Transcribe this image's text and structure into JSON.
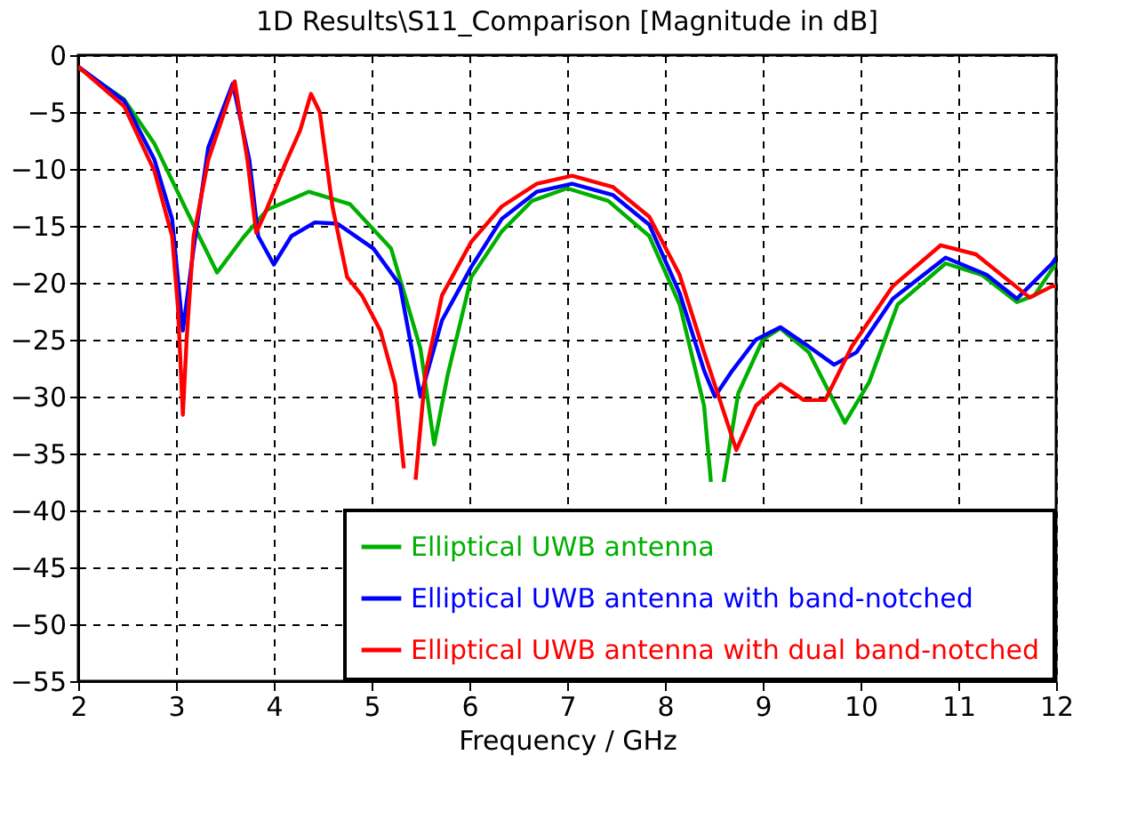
{
  "chart_data": {
    "type": "line",
    "title": "1D Results\\S11_Comparison [Magnitude in dB]",
    "xlabel": "Frequency / GHz",
    "xlim": [
      2,
      12
    ],
    "xticks": [
      2,
      3,
      4,
      5,
      6,
      7,
      8,
      9,
      10,
      11,
      12
    ],
    "ylim": [
      -55,
      0
    ],
    "yticks": [
      0,
      -5,
      -10,
      -15,
      -20,
      -25,
      -30,
      -35,
      -40,
      -45,
      -50,
      -55
    ],
    "grid": true,
    "legend": "bottom right",
    "series": [
      {
        "name": "Elliptical UWB antenna",
        "color": "#00b000",
        "x": [
          2,
          2.47,
          2.78,
          3.15,
          3.42,
          3.69,
          3.93,
          4.36,
          4.78,
          5.2,
          5.5,
          5.64,
          5.78,
          6.02,
          6.33,
          6.64,
          7.0,
          7.42,
          7.84,
          8.15,
          8.4,
          8.47,
          8.53,
          8.6,
          8.75,
          9.0,
          9.18,
          9.47,
          9.84,
          10.09,
          10.38,
          10.87,
          11.24,
          11.6,
          11.78,
          11.96,
          12
        ],
        "values": [
          -1.1,
          -3.9,
          -7.8,
          -14.4,
          -19.1,
          -16,
          -13.6,
          -12,
          -13.1,
          -17,
          -25.8,
          -34.2,
          -28,
          -19.5,
          -15.5,
          -12.8,
          -11.7,
          -12.8,
          -15.9,
          -21.9,
          -30.8,
          -37.5,
          null,
          -37.5,
          -29.7,
          -25,
          -24,
          -26.1,
          -32.3,
          -28.7,
          -21.9,
          -18.3,
          -19.3,
          -21.7,
          -21.1,
          -18.8,
          -18.3
        ]
      },
      {
        "name": "Elliptical UWB antenna with band-notched",
        "color": "#0000ff",
        "x": [
          2,
          2.47,
          2.78,
          2.96,
          3.07,
          3.18,
          3.33,
          3.58,
          3.75,
          3.84,
          4.0,
          4.18,
          4.42,
          4.65,
          5.02,
          5.29,
          5.5,
          5.72,
          6.02,
          6.33,
          6.69,
          7.05,
          7.47,
          7.84,
          8.15,
          8.4,
          8.51,
          8.69,
          8.93,
          9.18,
          9.47,
          9.73,
          9.96,
          10.33,
          10.87,
          11.29,
          11.6,
          11.96,
          12
        ],
        "values": [
          -1,
          -4,
          -9.2,
          -14.4,
          -24.2,
          -17,
          -8.1,
          -2.5,
          -9.2,
          -15.9,
          -18.4,
          -15.9,
          -14.7,
          -14.8,
          -17,
          -20.2,
          -30,
          -23.3,
          -18.6,
          -14.4,
          -12,
          -11.3,
          -12.3,
          -14.9,
          -20.9,
          -27.7,
          -30,
          -27.7,
          -25,
          -23.9,
          -25.6,
          -27.2,
          -26.1,
          -21.4,
          -17.8,
          -19.3,
          -21.4,
          -18.3,
          -17.8
        ]
      },
      {
        "name": "Elliptical UWB antenna with dual band-notched",
        "color": "#ff0000",
        "x": [
          2,
          2.47,
          2.78,
          2.96,
          3.02,
          3.07,
          3.11,
          3.18,
          3.33,
          3.6,
          3.73,
          3.82,
          3.91,
          4.11,
          4.27,
          4.38,
          4.47,
          4.6,
          4.75,
          4.9,
          5.09,
          5.24,
          5.33,
          5.39,
          5.45,
          5.55,
          5.72,
          6.02,
          6.33,
          6.69,
          7.05,
          7.47,
          7.84,
          8.15,
          8.4,
          8.73,
          8.93,
          9.18,
          9.42,
          9.64,
          9.91,
          10.33,
          10.82,
          11.18,
          11.73,
          11.96,
          12
        ],
        "values": [
          -1,
          -4.5,
          -10.2,
          -15.9,
          -22.2,
          -31.6,
          -24.8,
          -15.9,
          -9.2,
          -2.3,
          -9.2,
          -15.6,
          -13.9,
          -9.7,
          -6.6,
          -3.4,
          -5,
          -13.3,
          -19.5,
          -21.1,
          -24.2,
          -28.9,
          -36.3,
          null,
          -37.3,
          -28,
          -21.1,
          -16.4,
          -13.3,
          -11.3,
          -10.6,
          -11.6,
          -14.2,
          -19.3,
          -26.1,
          -34.7,
          -30.8,
          -28.9,
          -30.3,
          -30.3,
          -25.6,
          -20.3,
          -16.7,
          -17.5,
          -21.3,
          -20.3,
          -20.3
        ]
      }
    ]
  }
}
